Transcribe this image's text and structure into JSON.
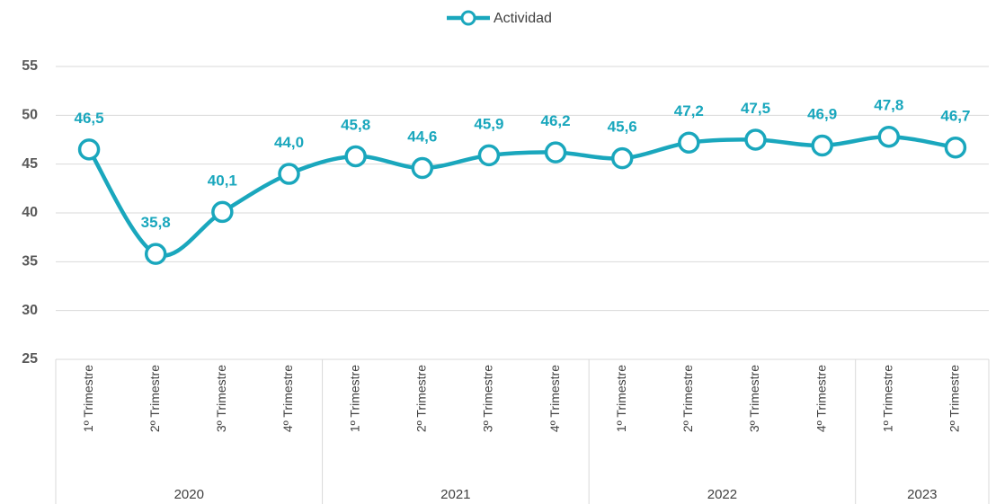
{
  "chart_data": {
    "type": "line",
    "categories": [
      "1º Trimestre",
      "2º Trimestre",
      "3º Trimestre",
      "4º Trimestre",
      "1º Trimestre",
      "2º Trimestre",
      "3º Trimestre",
      "4º Trimestre",
      "1º Trimestre",
      "2º Trimestre",
      "3º Trimestre",
      "4º Trimestre",
      "1º Trimestre",
      "2º Trimestre"
    ],
    "year_groups": [
      {
        "label": "2020",
        "size": 4
      },
      {
        "label": "2021",
        "size": 4
      },
      {
        "label": "2022",
        "size": 4
      },
      {
        "label": "2023",
        "size": 2
      }
    ],
    "series": [
      {
        "name": "Actividad",
        "color": "#1aa7bd",
        "values": [
          46.5,
          35.8,
          40.1,
          44.0,
          45.8,
          44.6,
          45.9,
          46.2,
          45.6,
          47.2,
          47.5,
          46.9,
          47.8,
          46.7
        ],
        "value_labels": [
          "46,5",
          "35,8",
          "40,1",
          "44,0",
          "45,8",
          "44,6",
          "45,9",
          "46,2",
          "45,6",
          "47,2",
          "47,5",
          "46,9",
          "47,8",
          "46,7"
        ]
      }
    ],
    "ylim": [
      25,
      55
    ],
    "yticks": [
      25,
      30,
      35,
      40,
      45,
      50,
      55
    ],
    "grid": true,
    "legend": "top",
    "smooth": true
  }
}
